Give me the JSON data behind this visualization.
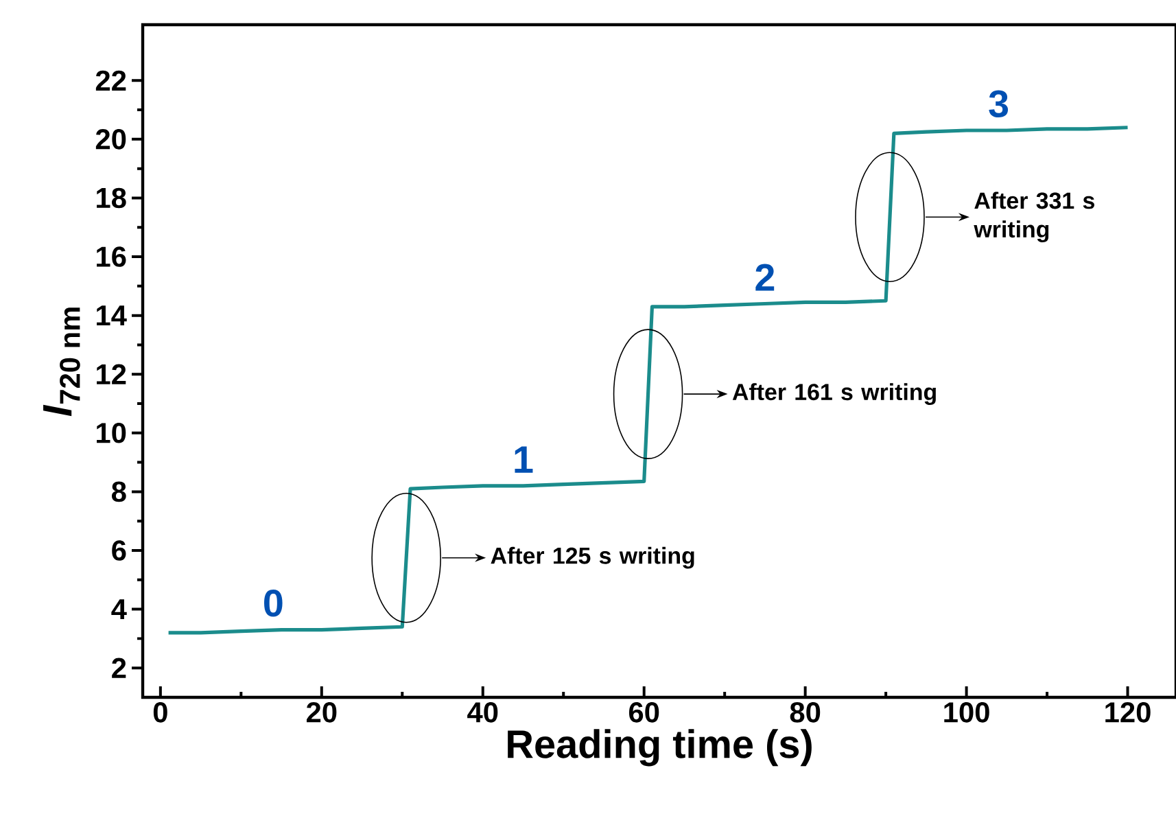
{
  "chart_data": {
    "type": "line",
    "xlabel": "Reading time (s)",
    "ylabel": "*I*$_{720 nm}$",
    "xlim": [
      -2.2,
      126
    ],
    "ylim": [
      1,
      23.9
    ],
    "xticks": [
      0,
      20,
      40,
      60,
      80,
      100,
      120
    ],
    "yticks": [
      2,
      4,
      6,
      8,
      10,
      12,
      14,
      16,
      18,
      20,
      22
    ],
    "grid": false,
    "legend": false,
    "marker": "none",
    "line_style": "solid",
    "series": [
      {
        "color": "#1b8c8c",
        "x": [
          1,
          5,
          10,
          15,
          20,
          25,
          30,
          31,
          35,
          40,
          45,
          50,
          55,
          60,
          61,
          65,
          70,
          75,
          80,
          85,
          90,
          91,
          95,
          100,
          105,
          110,
          115,
          120
        ],
        "values": [
          3.2,
          3.2,
          3.25,
          3.3,
          3.3,
          3.35,
          3.4,
          8.1,
          8.15,
          8.2,
          8.2,
          8.25,
          8.3,
          8.35,
          14.3,
          14.3,
          14.35,
          14.4,
          14.45,
          14.45,
          14.5,
          20.2,
          20.25,
          20.3,
          20.3,
          20.35,
          20.35,
          20.4
        ]
      }
    ],
    "annotations": [
      {
        "text": "0",
        "x": 14,
        "y": 3.3
      },
      {
        "text": "1",
        "x": 45,
        "y": 8.2
      },
      {
        "text": "2",
        "x": 75,
        "y": 14.4
      },
      {
        "text": "3",
        "x": 104,
        "y": 20.3
      },
      "After 125 s writing",
      "After 161 s writing",
      "After 331 s writing"
    ]
  }
}
